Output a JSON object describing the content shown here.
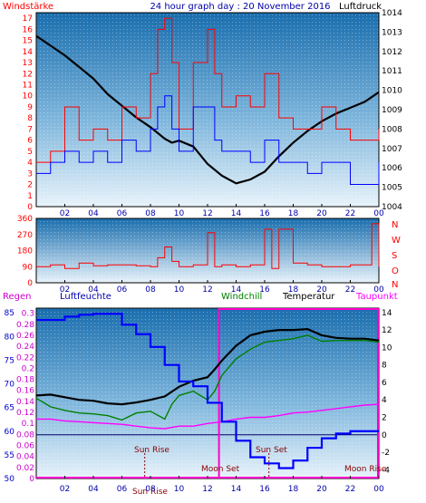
{
  "chart_data": [
    {
      "type": "line",
      "title": "24 hour graph day : 20 November 2016",
      "left_label": "Windstärke",
      "right_label": "Luftdruck",
      "x_ticks": [
        "02",
        "04",
        "06",
        "08",
        "10",
        "12",
        "14",
        "16",
        "18",
        "20",
        "22",
        "00"
      ],
      "y_left_ticks": [
        "0",
        "1",
        "2",
        "3",
        "4",
        "5",
        "6",
        "7",
        "8",
        "9",
        "10",
        "11",
        "12",
        "13",
        "14",
        "15",
        "16",
        "17"
      ],
      "y_right_ticks": [
        "1004",
        "1005",
        "1006",
        "1007",
        "1008",
        "1009",
        "1010",
        "1011",
        "1012",
        "1013",
        "1014"
      ],
      "ylim_left": [
        0,
        17.5
      ],
      "ylim_right": [
        1004,
        1014
      ],
      "xlim_hours": [
        0,
        24
      ],
      "series": [
        {
          "name": "Luftdruck",
          "color": "#000000",
          "axis": "right",
          "x": [
            0,
            1,
            2,
            3,
            4,
            5,
            6,
            7,
            8,
            9,
            9.5,
            10,
            11,
            12,
            13,
            14,
            15,
            16,
            17,
            18,
            19,
            20,
            21,
            22,
            23,
            24
          ],
          "y": [
            1012.8,
            1012.3,
            1011.8,
            1011.2,
            1010.6,
            1009.8,
            1009.2,
            1008.6,
            1008.1,
            1007.5,
            1007.3,
            1007.4,
            1007.1,
            1006.2,
            1005.6,
            1005.2,
            1005.4,
            1005.8,
            1006.6,
            1007.3,
            1007.9,
            1008.4,
            1008.8,
            1009.1,
            1009.4,
            1009.9
          ]
        },
        {
          "name": "Windstärke",
          "color": "#ff0000",
          "axis": "left",
          "x": [
            0,
            1,
            2,
            3,
            4,
            5,
            6,
            7,
            8,
            8.5,
            9,
            9.5,
            10,
            11,
            12,
            12.5,
            13,
            14,
            15,
            16,
            17,
            18,
            19,
            20,
            21,
            22,
            23,
            24
          ],
          "y": [
            4,
            5,
            9,
            6,
            7,
            6,
            9,
            8,
            12,
            16,
            17,
            13,
            7,
            13,
            16,
            12,
            9,
            10,
            9,
            12,
            8,
            7,
            7,
            9,
            7,
            6,
            6,
            7
          ]
        },
        {
          "name": "Windstärke (avg)",
          "color": "#0000ff",
          "axis": "left",
          "x": [
            0,
            1,
            2,
            3,
            4,
            5,
            6,
            7,
            8,
            8.5,
            9,
            9.5,
            10,
            11,
            12,
            12.5,
            13,
            14,
            15,
            16,
            17,
            18,
            19,
            20,
            21,
            22,
            23,
            24
          ],
          "y": [
            3,
            4,
            5,
            4,
            5,
            4,
            6,
            5,
            7,
            9,
            10,
            7,
            5,
            9,
            9,
            6,
            5,
            5,
            4,
            6,
            4,
            4,
            3,
            4,
            4,
            2,
            2,
            4
          ]
        }
      ]
    },
    {
      "type": "line",
      "title": "",
      "x_ticks": [
        "02",
        "04",
        "06",
        "08",
        "10",
        "12",
        "14",
        "16",
        "18",
        "20",
        "22",
        "00"
      ],
      "y_ticks": [
        "0",
        "90",
        "180",
        "270",
        "360"
      ],
      "y_right_labels": [
        "N",
        "W",
        "S",
        "O",
        "N"
      ],
      "ylim": [
        0,
        360
      ],
      "series": [
        {
          "name": "Windrichtung",
          "color": "#ff0000",
          "x": [
            0,
            1,
            2,
            3,
            4,
            5,
            6,
            7,
            8,
            8.5,
            9,
            9.5,
            10,
            11,
            12,
            12.5,
            13,
            14,
            15,
            16,
            16.5,
            17,
            18,
            19,
            20,
            21,
            22,
            23,
            23.5,
            24
          ],
          "y": [
            90,
            100,
            80,
            110,
            95,
            100,
            100,
            95,
            90,
            140,
            200,
            120,
            90,
            100,
            280,
            90,
            100,
            90,
            100,
            300,
            80,
            300,
            110,
            100,
            90,
            90,
            100,
            100,
            330,
            90
          ]
        }
      ]
    },
    {
      "type": "line",
      "title": "",
      "left_labels": [
        "Regen",
        "Luftfeuchte"
      ],
      "right_labels": [
        "Windchill",
        "Temperatur",
        "Taupunkt"
      ],
      "x_ticks": [
        "02",
        "04",
        "06",
        "08",
        "10",
        "12",
        "14",
        "16",
        "18",
        "20",
        "22",
        "00"
      ],
      "rain_ticks": [
        "0",
        "0.02",
        "0.04",
        "0.06",
        "0.08",
        "0.1",
        "0.12",
        "0.14",
        "0.16",
        "0.18",
        "0.2",
        "0.22",
        "0.24",
        "0.26",
        "0.28",
        "0.3"
      ],
      "humidity_ticks": [
        "50",
        "55",
        "60",
        "65",
        "70",
        "75",
        "80",
        "85"
      ],
      "temp_ticks": [
        "-4",
        "-2",
        "0",
        "2",
        "4",
        "6",
        "8",
        "10",
        "12",
        "14"
      ],
      "ylim_temp": [
        -5,
        14.5
      ],
      "ylim_humidity": [
        50,
        86
      ],
      "annotations": [
        "Sun Rise",
        "Sun Set",
        "Sun Rise",
        "Moon Set",
        "Moon Rise"
      ],
      "series": [
        {
          "name": "Temperatur",
          "color": "#000000",
          "x": [
            0,
            1,
            2,
            3,
            4,
            5,
            6,
            7,
            8,
            9,
            10,
            11,
            12,
            12.5,
            13,
            14,
            15,
            16,
            17,
            18,
            19,
            20,
            21,
            22,
            23,
            24
          ],
          "y": [
            4.5,
            4.6,
            4.3,
            4.0,
            3.9,
            3.6,
            3.5,
            3.7,
            4.0,
            4.4,
            5.5,
            6.2,
            6.6,
            7.5,
            8.5,
            10.2,
            11.4,
            11.8,
            12.0,
            12.0,
            12.1,
            11.4,
            11.1,
            11.0,
            11.0,
            10.8
          ]
        },
        {
          "name": "Windchill",
          "color": "#008000",
          "x": [
            0,
            1,
            2,
            3,
            4,
            5,
            6,
            7,
            8,
            9,
            9.5,
            10,
            11,
            12,
            12.5,
            13,
            14,
            15,
            16,
            17,
            18,
            19,
            20,
            21,
            22,
            23,
            24
          ],
          "y": [
            4.2,
            3.2,
            2.8,
            2.5,
            2.4,
            2.2,
            1.7,
            2.5,
            2.7,
            1.8,
            3.5,
            4.5,
            5.0,
            4.0,
            5.0,
            6.8,
            8.7,
            9.8,
            10.6,
            10.8,
            11.0,
            11.4,
            10.7,
            10.8,
            10.8,
            10.8,
            10.6
          ]
        },
        {
          "name": "Taupunkt",
          "color": "#ff00ff",
          "x": [
            0,
            1,
            2,
            3,
            4,
            5,
            6,
            7,
            8,
            9,
            10,
            11,
            12,
            13,
            14,
            15,
            16,
            17,
            18,
            19,
            20,
            21,
            22,
            23,
            24
          ],
          "y": [
            1.8,
            1.8,
            1.6,
            1.5,
            1.4,
            1.3,
            1.2,
            1.0,
            0.8,
            0.7,
            1.0,
            1.0,
            1.3,
            1.5,
            1.8,
            2.0,
            2.0,
            2.2,
            2.5,
            2.6,
            2.8,
            3.0,
            3.2,
            3.4,
            3.5
          ]
        },
        {
          "name": "Luftfeuchte",
          "color": "#0000ff",
          "x": [
            0,
            1,
            2,
            3,
            4,
            5,
            6,
            7,
            8,
            9,
            10,
            11,
            12,
            13,
            14,
            15,
            16,
            17,
            18,
            19,
            20,
            21,
            22,
            23,
            24
          ],
          "y": [
            83.5,
            83.5,
            84.2,
            84.6,
            84.8,
            84.8,
            82.5,
            80.5,
            77.8,
            74.0,
            70.5,
            69.5,
            66.0,
            62.0,
            58.0,
            54.5,
            53.2,
            52.2,
            53.8,
            56.5,
            58.5,
            59.5,
            60.0,
            60.0,
            60.0
          ]
        }
      ]
    }
  ]
}
